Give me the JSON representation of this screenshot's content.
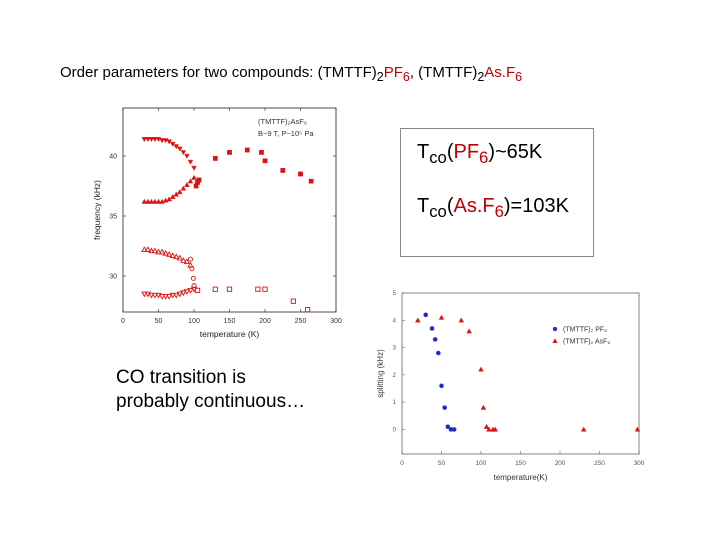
{
  "title": {
    "prefix": "Order parameters for two compounds: ",
    "c1_base": "(TMTTF)",
    "c1_sub": "2",
    "c1_anion": "PF",
    "c1_anion_sub": "6",
    "sep": ", ",
    "c2_base": "(TMTTF)",
    "c2_sub": "2",
    "c2_anion": "As.F",
    "c2_anion_sub": "6"
  },
  "box": {
    "line1": {
      "t": "T",
      "sub": "co",
      "open": "(",
      "anion": "PF",
      "anion_sub": "6",
      "rest": ")~65K"
    },
    "line2": {
      "t": "T",
      "sub": "co",
      "open": "(",
      "anion": "As.F",
      "anion_sub": "6",
      "rest": ")=103K"
    }
  },
  "note": {
    "line1": "CO transition is",
    "line2": "probably continuous…"
  },
  "colors": {
    "red": "#dd1111",
    "blue": "#1a2ccc",
    "title_red": "#c00000"
  },
  "chart_data": [
    {
      "type": "scatter",
      "title": "",
      "legend_lines": [
        "(TMTTF)₂AsF₆",
        "B~9 T,  P~10⁵ Pa"
      ],
      "xlabel": "temperature (K)",
      "ylabel": "frequency (kHz)",
      "xlim": [
        0,
        300
      ],
      "ylim": [
        27,
        44
      ],
      "xticks": [
        "0",
        "50",
        "100",
        "150",
        "200",
        "250",
        "300"
      ],
      "xtick_values": [
        0,
        50,
        100,
        150,
        200,
        250,
        300
      ],
      "yticks": [
        "40",
        "35",
        "30"
      ],
      "ytick_values": [
        40,
        35,
        30
      ],
      "series": [
        {
          "marker": "filled-triangle-down",
          "color": "#dd1111",
          "x": [
            30,
            35,
            40,
            45,
            50,
            55,
            60,
            65,
            70,
            75,
            80,
            85,
            90,
            95,
            100
          ],
          "y": [
            41.4,
            41.4,
            41.4,
            41.4,
            41.4,
            41.3,
            41.3,
            41.2,
            41.0,
            40.8,
            40.6,
            40.3,
            40.0,
            39.5,
            39.0
          ]
        },
        {
          "marker": "filled-square",
          "color": "#dd1111",
          "x": [
            103,
            105,
            107,
            130,
            150,
            175,
            195,
            200,
            225,
            250,
            265
          ],
          "y": [
            37.5,
            37.8,
            38.0,
            39.8,
            40.3,
            40.5,
            40.3,
            39.6,
            38.8,
            38.5,
            37.9
          ]
        },
        {
          "marker": "filled-triangle-up",
          "color": "#dd1111",
          "x": [
            30,
            35,
            40,
            45,
            50,
            55,
            60,
            65,
            70,
            75,
            80,
            85,
            90,
            95,
            100
          ],
          "y": [
            36.2,
            36.2,
            36.2,
            36.2,
            36.2,
            36.2,
            36.3,
            36.4,
            36.6,
            36.8,
            37.0,
            37.3,
            37.6,
            37.9,
            38.2
          ]
        },
        {
          "marker": "open-triangle-up",
          "color": "#dd1111",
          "x": [
            30,
            35,
            40,
            45,
            50,
            55,
            60,
            65,
            70,
            75,
            80,
            85,
            90,
            95
          ],
          "y": [
            32.2,
            32.2,
            32.1,
            32.1,
            32.0,
            32.0,
            31.9,
            31.8,
            31.7,
            31.6,
            31.5,
            31.3,
            31.2,
            30.9
          ]
        },
        {
          "marker": "open-circle",
          "color": "#dd1111",
          "x": [
            95,
            97,
            99,
            100
          ],
          "y": [
            31.4,
            30.6,
            29.8,
            29.2
          ]
        },
        {
          "marker": "open-triangle-down",
          "color": "#dd1111",
          "x": [
            30,
            35,
            40,
            45,
            50,
            55,
            60,
            65,
            70,
            75,
            80,
            85,
            90,
            95,
            100
          ],
          "y": [
            28.5,
            28.5,
            28.4,
            28.4,
            28.4,
            28.3,
            28.3,
            28.3,
            28.4,
            28.4,
            28.5,
            28.6,
            28.7,
            28.8,
            28.9
          ]
        },
        {
          "marker": "open-square",
          "color": "#dd1111",
          "x": [
            105,
            130,
            150,
            190,
            200,
            240,
            260
          ],
          "y": [
            28.8,
            28.9,
            28.9,
            28.9,
            28.9,
            27.9,
            27.2
          ]
        }
      ]
    },
    {
      "type": "scatter",
      "title": "",
      "xlabel": "temperature(K)",
      "ylabel": "splitting (kHz)",
      "xlim": [
        0,
        300
      ],
      "ylim": [
        -0.9,
        5
      ],
      "xticks": [
        "0",
        "50",
        "100",
        "150",
        "200",
        "250",
        "300"
      ],
      "xtick_values": [
        0,
        50,
        100,
        150,
        200,
        250,
        300
      ],
      "yticks": [
        "5",
        "4",
        "3",
        "2",
        "1",
        "0"
      ],
      "ytick_values": [
        5,
        4,
        3,
        2,
        1,
        0
      ],
      "legend": "right",
      "series": [
        {
          "name": "(TMTTF)₂ PF₆",
          "marker": "filled-circle",
          "color": "#1a2ccc",
          "x": [
            30,
            38,
            42,
            46,
            50,
            54,
            58,
            62,
            66
          ],
          "y": [
            4.2,
            3.7,
            3.3,
            2.8,
            1.6,
            0.8,
            0.1,
            0,
            0
          ]
        },
        {
          "name": "(TMTTF)₂ AsF₆",
          "marker": "filled-triangle-up",
          "color": "#dd1111",
          "x": [
            20,
            50,
            75,
            85,
            100,
            103,
            107,
            110,
            115,
            118,
            230,
            298
          ],
          "y": [
            4.0,
            4.1,
            4.0,
            3.6,
            2.2,
            0.8,
            0.1,
            0,
            0,
            0,
            0,
            0
          ]
        }
      ]
    }
  ]
}
